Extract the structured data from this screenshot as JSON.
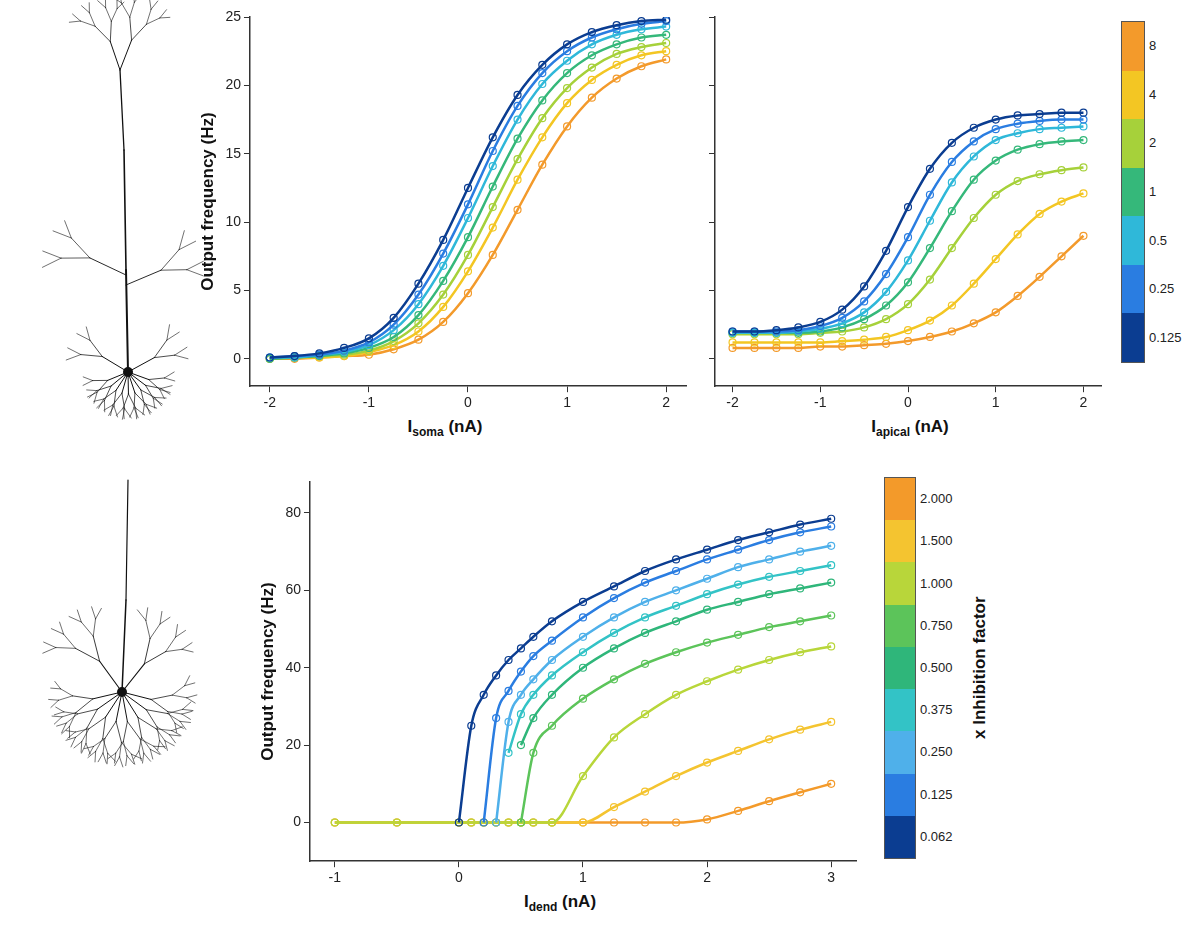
{
  "chart_data": [
    {
      "type": "line",
      "y_label": "Output frequency (Hz)",
      "x_label": "Isoma (nA)",
      "marker": "circle",
      "line_style": "solid",
      "grid": false,
      "x": [
        -2,
        -1.75,
        -1.5,
        -1.25,
        -1,
        -0.75,
        -0.5,
        -0.25,
        0,
        0.25,
        0.5,
        0.75,
        1,
        1.25,
        1.5,
        1.75,
        2
      ],
      "xlim": [
        -2.2,
        2.2
      ],
      "xticks": [
        -2,
        -1,
        0,
        1,
        2
      ],
      "ylim": [
        -2,
        25
      ],
      "yticks": [
        0,
        5,
        10,
        15,
        20,
        25
      ],
      "series": [
        {
          "color": "#0b3d91",
          "values": [
            0.1,
            0.2,
            0.4,
            0.8,
            1.5,
            3,
            5.5,
            8.7,
            12.5,
            16.2,
            19.3,
            21.5,
            23,
            23.9,
            24.4,
            24.7,
            24.8
          ]
        },
        {
          "color": "#2a7de1",
          "values": [
            0.1,
            0.2,
            0.3,
            0.6,
            1.2,
            2.5,
            4.7,
            7.7,
            11.3,
            15.2,
            18.5,
            20.9,
            22.5,
            23.5,
            24.1,
            24.5,
            24.7
          ]
        },
        {
          "color": "#2fb8d9",
          "values": [
            0.1,
            0.1,
            0.3,
            0.5,
            1.0,
            2.1,
            4.0,
            6.8,
            10.3,
            14.1,
            17.5,
            20.1,
            21.8,
            23,
            23.7,
            24.1,
            24.3
          ]
        },
        {
          "color": "#35b87a",
          "values": [
            0,
            0.1,
            0.2,
            0.4,
            0.8,
            1.6,
            3.2,
            5.7,
            8.9,
            12.6,
            16.1,
            18.9,
            20.9,
            22.2,
            23,
            23.5,
            23.7
          ]
        },
        {
          "color": "#a6d13a",
          "values": [
            0,
            0.1,
            0.2,
            0.3,
            0.6,
            1.3,
            2.6,
            4.7,
            7.6,
            11.1,
            14.6,
            17.6,
            19.8,
            21.3,
            22.3,
            22.8,
            23.1
          ]
        },
        {
          "color": "#f3c623",
          "values": [
            0,
            0.1,
            0.1,
            0.2,
            0.5,
            1.0,
            2.0,
            3.8,
            6.4,
            9.6,
            13.1,
            16.2,
            18.7,
            20.4,
            21.5,
            22.2,
            22.5
          ]
        },
        {
          "color": "#f39a2b",
          "values": [
            0,
            0,
            0.1,
            0.2,
            0.3,
            0.7,
            1.4,
            2.7,
            4.8,
            7.6,
            10.9,
            14.2,
            17,
            19.1,
            20.5,
            21.4,
            21.9
          ]
        }
      ]
    },
    {
      "type": "line",
      "x_label": "Iapical (nA)",
      "tick_labels": "x",
      "marker": "circle",
      "line_style": "solid",
      "grid": false,
      "x": [
        -2,
        -1.75,
        -1.5,
        -1.25,
        -1,
        -0.75,
        -0.5,
        -0.25,
        0,
        0.25,
        0.5,
        0.75,
        1,
        1.25,
        1.5,
        1.75,
        2
      ],
      "xlim": [
        -2.2,
        2.2
      ],
      "xticks": [
        -2,
        -1,
        0,
        1,
        2
      ],
      "ylim": [
        -2,
        25
      ],
      "yticks": [
        0,
        5,
        10,
        15,
        20,
        25
      ],
      "series": [
        {
          "color": "#0b3d91",
          "values": [
            2.0,
            2.0,
            2.1,
            2.3,
            2.7,
            3.6,
            5.3,
            7.9,
            11.1,
            13.9,
            15.8,
            16.9,
            17.5,
            17.8,
            17.9,
            18,
            18
          ]
        },
        {
          "color": "#2a7de1",
          "values": [
            2,
            2,
            2,
            2.1,
            2.4,
            3.0,
            4.2,
            6.2,
            8.9,
            12,
            14.4,
            15.9,
            16.8,
            17.2,
            17.4,
            17.5,
            17.5
          ]
        },
        {
          "color": "#2fb8d9",
          "values": [
            1.9,
            1.9,
            1.9,
            2,
            2.2,
            2.6,
            3.4,
            4.9,
            7.2,
            10.1,
            12.9,
            14.8,
            16,
            16.5,
            16.8,
            16.9,
            17
          ]
        },
        {
          "color": "#35b87a",
          "values": [
            1.9,
            1.9,
            1.9,
            1.9,
            2.0,
            2.3,
            2.9,
            3.9,
            5.6,
            8.1,
            10.8,
            13.1,
            14.5,
            15.3,
            15.7,
            15.9,
            16
          ]
        },
        {
          "color": "#a6d13a",
          "values": [
            1.8,
            1.8,
            1.8,
            1.8,
            1.9,
            2.0,
            2.3,
            2.9,
            4.0,
            5.8,
            8.1,
            10.3,
            12,
            13,
            13.5,
            13.8,
            14
          ]
        },
        {
          "color": "#f3c623",
          "values": [
            1.2,
            1.2,
            1.2,
            1.2,
            1.2,
            1.3,
            1.4,
            1.6,
            2.1,
            2.8,
            3.9,
            5.5,
            7.3,
            9.1,
            10.6,
            11.5,
            12.1
          ]
        },
        {
          "color": "#f39a2b",
          "values": [
            0.8,
            0.8,
            0.8,
            0.8,
            0.9,
            0.9,
            1.0,
            1.1,
            1.3,
            1.6,
            2.0,
            2.6,
            3.4,
            4.6,
            6.0,
            7.5,
            9.0
          ]
        }
      ],
      "colorbar": {
        "ticks": [
          0.125,
          0.25,
          0.5,
          1,
          2,
          4,
          8
        ],
        "colors": [
          "#0b3d91",
          "#2a7de1",
          "#2fb8d9",
          "#35b87a",
          "#a6d13a",
          "#f3c623",
          "#f39a2b"
        ]
      }
    },
    {
      "type": "line",
      "y_label": "Output frequency (Hz)",
      "x_label": "Idend (nA)",
      "marker": "circle",
      "line_style": "solid",
      "grid": false,
      "x": [
        -1,
        -0.5,
        0,
        0.1,
        0.2,
        0.3,
        0.4,
        0.5,
        0.6,
        0.75,
        1,
        1.25,
        1.5,
        1.75,
        2,
        2.25,
        2.5,
        2.75,
        3
      ],
      "xlim": [
        -1.2,
        3.2
      ],
      "xticks": [
        -1,
        0,
        1,
        2,
        3
      ],
      "ylim": [
        -10,
        88
      ],
      "yticks": [
        0,
        20,
        40,
        60,
        80
      ],
      "series": [
        {
          "color": "#0b3d91",
          "values": [
            null,
            null,
            0,
            25,
            33,
            38,
            42,
            45,
            48,
            52,
            57,
            61,
            65,
            68,
            70.5,
            73,
            75,
            77,
            78.5
          ]
        },
        {
          "color": "#2a7de1",
          "values": [
            null,
            null,
            null,
            null,
            0,
            27,
            34,
            39,
            43,
            47,
            53,
            58,
            62,
            65,
            68,
            70.5,
            73,
            75,
            76.5
          ]
        },
        {
          "color": "#4fb0ea",
          "values": [
            null,
            null,
            null,
            null,
            null,
            0,
            26,
            33,
            37,
            42,
            48,
            53,
            57,
            60,
            63,
            66,
            68,
            70,
            71.5
          ]
        },
        {
          "color": "#33c3c6",
          "values": [
            null,
            null,
            null,
            null,
            null,
            null,
            18,
            28,
            33,
            38,
            44,
            49,
            53,
            56,
            59,
            61.5,
            63.5,
            65,
            66.5
          ]
        },
        {
          "color": "#2fb67a",
          "values": [
            null,
            null,
            null,
            null,
            null,
            null,
            null,
            20,
            27,
            33,
            40,
            45,
            49,
            52,
            55,
            57,
            59,
            60.5,
            62
          ]
        },
        {
          "color": "#5cc45a",
          "values": [
            null,
            null,
            null,
            null,
            null,
            null,
            null,
            0,
            18,
            25,
            32,
            37,
            41,
            44,
            46.5,
            48.5,
            50.5,
            52,
            53.5
          ]
        },
        {
          "color": "#b8d63a",
          "values": [
            0,
            0,
            0,
            0,
            0,
            0,
            0,
            0,
            0,
            0,
            12,
            22,
            28,
            33,
            36.5,
            39.5,
            42,
            44,
            45.5
          ]
        },
        {
          "color": "#f4c430",
          "values": [
            0,
            0,
            0,
            0,
            0,
            0,
            0,
            0,
            0,
            0,
            0,
            4,
            8,
            12,
            15.5,
            18.5,
            21.5,
            24,
            26
          ]
        },
        {
          "color": "#f39a2a",
          "values": [
            0,
            0,
            0,
            0,
            0,
            0,
            0,
            0,
            0,
            0,
            0,
            0,
            0,
            0,
            0.8,
            3,
            5.5,
            7.8,
            10
          ]
        }
      ],
      "colorbar": {
        "label": "x Inhibition factor",
        "ticks": [
          {
            "value": 0.062,
            "label": "0.062"
          },
          {
            "value": 0.125,
            "label": "0.125"
          },
          {
            "value": 0.25,
            "label": "0.250"
          },
          {
            "value": 0.375,
            "label": "0.375"
          },
          {
            "value": 0.5,
            "label": "0.500"
          },
          {
            "value": 0.75,
            "label": "0.750"
          },
          {
            "value": 1,
            "label": "1.000"
          },
          {
            "value": 1.5,
            "label": "1.500"
          },
          {
            "value": 2,
            "label": "2.000"
          }
        ],
        "colors": [
          "#0b3d91",
          "#2a7de1",
          "#4fb0ea",
          "#33c3c6",
          "#2fb67a",
          "#5cc45a",
          "#b8d63a",
          "#f4c430",
          "#f39a2a"
        ]
      }
    }
  ]
}
